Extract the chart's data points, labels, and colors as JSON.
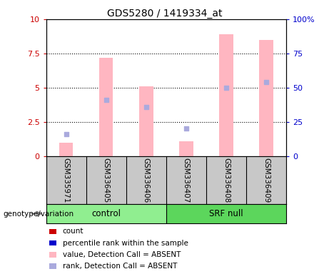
{
  "title": "GDS5280 / 1419334_at",
  "samples": [
    "GSM335971",
    "GSM336405",
    "GSM336406",
    "GSM336407",
    "GSM336408",
    "GSM336409"
  ],
  "bar_pink_values": [
    1.0,
    7.2,
    5.1,
    1.1,
    8.9,
    8.5
  ],
  "bar_pink_color": "#FFB6C1",
  "rank_blue_values": [
    1.6,
    4.1,
    3.6,
    2.0,
    5.0,
    5.4
  ],
  "rank_blue_color": "#AAAADD",
  "ylim_left": [
    0,
    10
  ],
  "ylim_right": [
    0,
    100
  ],
  "yticks_left": [
    0,
    2.5,
    5.0,
    7.5,
    10
  ],
  "yticks_right": [
    0,
    25,
    50,
    75,
    100
  ],
  "ytick_labels_left": [
    "0",
    "2.5",
    "5",
    "7.5",
    "10"
  ],
  "ytick_labels_right": [
    "0",
    "25",
    "50",
    "75",
    "100%"
  ],
  "left_axis_color": "#CC0000",
  "right_axis_color": "#0000CC",
  "plot_bg_color": "#FFFFFF",
  "sample_box_color": "#C8C8C8",
  "control_color": "#90EE90",
  "srfnull_color": "#5CD65C",
  "legend_items": [
    {
      "label": "count",
      "color": "#CC0000",
      "marker": "s"
    },
    {
      "label": "percentile rank within the sample",
      "color": "#0000CC",
      "marker": "s"
    },
    {
      "label": "value, Detection Call = ABSENT",
      "color": "#FFB6C1",
      "marker": "s"
    },
    {
      "label": "rank, Detection Call = ABSENT",
      "color": "#AAAADD",
      "marker": "s"
    }
  ],
  "genotype_label": "genotype/variation",
  "bar_width": 0.35,
  "fig_width": 4.61,
  "fig_height": 3.84
}
